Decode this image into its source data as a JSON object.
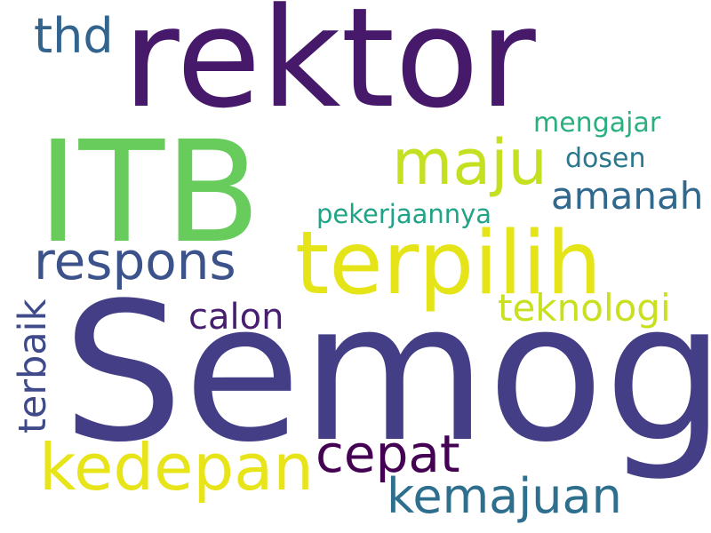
{
  "wordcloud": {
    "background": "#ffffff",
    "words": [
      {
        "text": "rektor",
        "color": "#46196b"
      },
      {
        "text": "thd",
        "color": "#32648e"
      },
      {
        "text": "ITB",
        "color": "#67cc5c"
      },
      {
        "text": "mengajar",
        "color": "#2ab07f"
      },
      {
        "text": "maju",
        "color": "#c4e021"
      },
      {
        "text": "dosen",
        "color": "#2a788e"
      },
      {
        "text": "amanah",
        "color": "#31688e"
      },
      {
        "text": "pekerjaannya",
        "color": "#20a386"
      },
      {
        "text": "terpilih",
        "color": "#e5e419"
      },
      {
        "text": "respons",
        "color": "#3b528b"
      },
      {
        "text": "teknologi",
        "color": "#c8e020"
      },
      {
        "text": "calon",
        "color": "#481f70"
      },
      {
        "text": "terbaik",
        "color": "#3e4a89"
      },
      {
        "text": "Semoga",
        "color": "#433e85"
      },
      {
        "text": "cepat",
        "color": "#440154"
      },
      {
        "text": "kedepan",
        "color": "#e7e419"
      },
      {
        "text": "kemajuan",
        "color": "#2e6f8e"
      }
    ]
  }
}
